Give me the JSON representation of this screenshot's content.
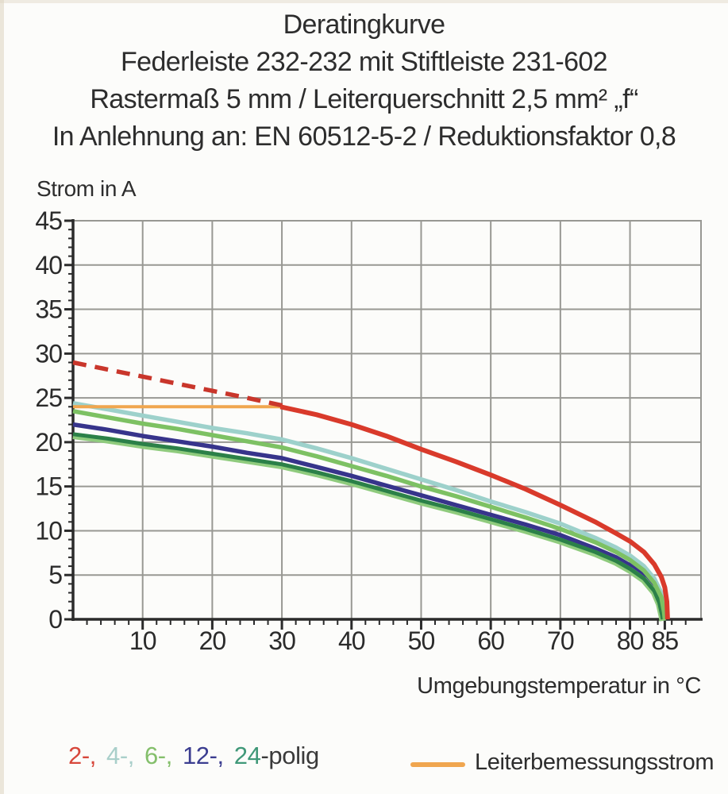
{
  "title": {
    "line1": "Deratingkurve",
    "line2": "Federleiste 232-232 mit Stiftleiste 231-602",
    "line3": "Rastermaß 5 mm / Leiterquerschnitt 2,5 mm² „f“",
    "line4": "In Anlehnung an: EN 60512-5-2 / Reduktionsfaktor 0,8"
  },
  "axes": {
    "y_label": "Strom in A",
    "x_label": "Umgebungstemperatur in °C"
  },
  "legend": {
    "poles": [
      {
        "label": "2-,",
        "color": "#d7473b"
      },
      {
        "label": "4-,",
        "color": "#a9cfca"
      },
      {
        "label": "6-,",
        "color": "#84bf6b"
      },
      {
        "label": "12-,",
        "color": "#3b3d90"
      },
      {
        "label": "24",
        "color": "#3f9878"
      }
    ],
    "suffix": "-polig",
    "suffix_color": "#3a3a3a",
    "rated_label": "Leiterbemessungsstrom",
    "rated_color": "#f0a64f"
  },
  "chart_data": {
    "type": "line",
    "title": "Deratingkurve",
    "xlabel": "Umgebungstemperatur in °C",
    "ylabel": "Strom in A",
    "xlim": [
      0,
      90
    ],
    "ylim": [
      0,
      45
    ],
    "x_ticks": [
      10,
      20,
      30,
      40,
      50,
      60,
      70,
      80,
      85
    ],
    "y_ticks": [
      0,
      5,
      10,
      15,
      20,
      25,
      30,
      35,
      40,
      45
    ],
    "x_minor_step": 2,
    "y_minor_step": 1,
    "grid": true,
    "grid_color": "#989893",
    "series": [
      {
        "name": "4-polig",
        "color": "#9dd1cb",
        "style": "solid",
        "width": 5.5,
        "points": [
          [
            0,
            24.4
          ],
          [
            5,
            23.7
          ],
          [
            10,
            23.0
          ],
          [
            15,
            22.3
          ],
          [
            20,
            21.6
          ],
          [
            25,
            21.0
          ],
          [
            30,
            20.3
          ],
          [
            35,
            19.3
          ],
          [
            40,
            18.2
          ],
          [
            45,
            17.0
          ],
          [
            50,
            15.8
          ],
          [
            55,
            14.6
          ],
          [
            60,
            13.3
          ],
          [
            65,
            12.1
          ],
          [
            70,
            10.8
          ],
          [
            75,
            9.2
          ],
          [
            78,
            8.1
          ],
          [
            80,
            7.2
          ],
          [
            82,
            6.0
          ],
          [
            83.5,
            4.6
          ],
          [
            84.5,
            3.0
          ],
          [
            85,
            1.2
          ],
          [
            85.1,
            0
          ]
        ]
      },
      {
        "name": "12-polig",
        "color": "#37348b",
        "style": "solid",
        "width": 5.5,
        "points": [
          [
            0,
            22.0
          ],
          [
            5,
            21.4
          ],
          [
            10,
            20.7
          ],
          [
            15,
            20.1
          ],
          [
            20,
            19.5
          ],
          [
            25,
            18.8
          ],
          [
            30,
            18.2
          ],
          [
            35,
            17.2
          ],
          [
            40,
            16.2
          ],
          [
            45,
            15.1
          ],
          [
            50,
            14.0
          ],
          [
            55,
            12.9
          ],
          [
            60,
            11.8
          ],
          [
            65,
            10.7
          ],
          [
            70,
            9.5
          ],
          [
            75,
            8.0
          ],
          [
            78,
            7.0
          ],
          [
            80,
            6.1
          ],
          [
            82,
            5.0
          ],
          [
            83.5,
            3.6
          ],
          [
            84.3,
            2.2
          ],
          [
            84.8,
            0.6
          ],
          [
            84.9,
            0
          ]
        ]
      },
      {
        "name": "24-polig",
        "color": "#2b8048",
        "style": "solid",
        "width": 5,
        "underlay": "#8fcb7d",
        "points": [
          [
            0,
            20.9
          ],
          [
            5,
            20.4
          ],
          [
            10,
            19.8
          ],
          [
            15,
            19.3
          ],
          [
            20,
            18.7
          ],
          [
            25,
            18.1
          ],
          [
            30,
            17.5
          ],
          [
            35,
            16.6
          ],
          [
            40,
            15.6
          ],
          [
            45,
            14.5
          ],
          [
            50,
            13.4
          ],
          [
            55,
            12.4
          ],
          [
            60,
            11.3
          ],
          [
            65,
            10.2
          ],
          [
            70,
            9.0
          ],
          [
            75,
            7.6
          ],
          [
            78,
            6.6
          ],
          [
            80,
            5.7
          ],
          [
            82,
            4.6
          ],
          [
            83.5,
            3.2
          ],
          [
            84.2,
            1.9
          ],
          [
            84.6,
            0.5
          ],
          [
            84.7,
            0
          ]
        ]
      },
      {
        "name": "6-polig",
        "color": "#7dc163",
        "style": "solid",
        "width": 5.5,
        "points": [
          [
            0,
            23.5
          ],
          [
            5,
            22.8
          ],
          [
            10,
            22.1
          ],
          [
            15,
            21.5
          ],
          [
            20,
            20.8
          ],
          [
            25,
            20.1
          ],
          [
            30,
            19.4
          ],
          [
            35,
            18.4
          ],
          [
            40,
            17.3
          ],
          [
            45,
            16.2
          ],
          [
            50,
            15.0
          ],
          [
            55,
            13.9
          ],
          [
            60,
            12.7
          ],
          [
            65,
            11.5
          ],
          [
            70,
            10.2
          ],
          [
            75,
            8.7
          ],
          [
            78,
            7.6
          ],
          [
            80,
            6.7
          ],
          [
            82,
            5.5
          ],
          [
            83.5,
            4.1
          ],
          [
            84.5,
            2.5
          ],
          [
            84.9,
            0.8
          ],
          [
            85,
            0
          ]
        ]
      },
      {
        "name": "Leiterbemessungsstrom",
        "color": "#f0a64f",
        "style": "solid",
        "width": 4,
        "points": [
          [
            0,
            24
          ],
          [
            30.3,
            24
          ]
        ]
      },
      {
        "name": "2-polig gestrichelt",
        "color": "#c9362b",
        "style": "dashed",
        "width": 5.5,
        "points": [
          [
            0,
            29.0
          ],
          [
            5,
            28.2
          ],
          [
            10,
            27.4
          ],
          [
            15,
            26.6
          ],
          [
            20,
            25.8
          ],
          [
            25,
            25.0
          ],
          [
            30.3,
            24.1
          ]
        ]
      },
      {
        "name": "2-polig",
        "color": "#d93a2b",
        "style": "solid",
        "width": 6,
        "points": [
          [
            29.8,
            24.0
          ],
          [
            35,
            23.1
          ],
          [
            40,
            22.0
          ],
          [
            45,
            20.7
          ],
          [
            50,
            19.2
          ],
          [
            55,
            17.8
          ],
          [
            60,
            16.3
          ],
          [
            65,
            14.7
          ],
          [
            70,
            12.9
          ],
          [
            75,
            11.0
          ],
          [
            78,
            9.7
          ],
          [
            80,
            8.8
          ],
          [
            82,
            7.6
          ],
          [
            83.5,
            6.2
          ],
          [
            84.5,
            4.8
          ],
          [
            85,
            3.6
          ],
          [
            85.3,
            2.0
          ],
          [
            85.4,
            0
          ]
        ]
      }
    ]
  }
}
